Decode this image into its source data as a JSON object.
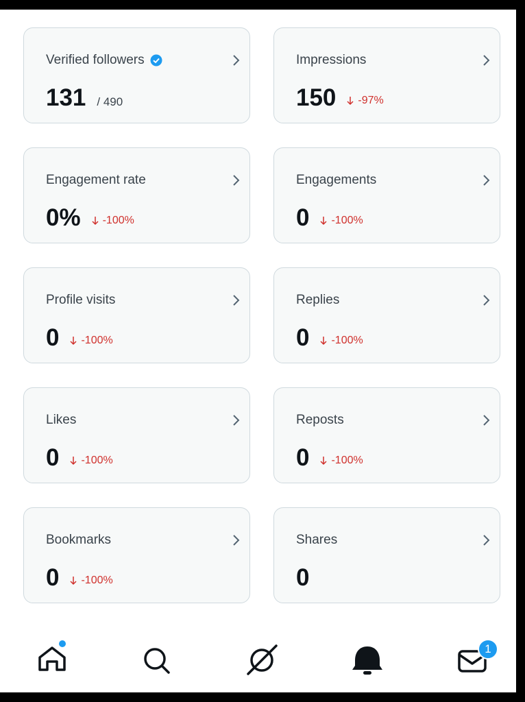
{
  "cards": [
    {
      "label": "Verified followers",
      "value": "131",
      "total": "/ 490",
      "verified": true
    },
    {
      "label": "Impressions",
      "value": "150",
      "change": "-97%"
    },
    {
      "label": "Engagement rate",
      "value": "0%",
      "change": "-100%"
    },
    {
      "label": "Engagements",
      "value": "0",
      "change": "-100%"
    },
    {
      "label": "Profile visits",
      "value": "0",
      "change": "-100%"
    },
    {
      "label": "Replies",
      "value": "0",
      "change": "-100%"
    },
    {
      "label": "Likes",
      "value": "0",
      "change": "-100%"
    },
    {
      "label": "Reposts",
      "value": "0",
      "change": "-100%"
    },
    {
      "label": "Bookmarks",
      "value": "0",
      "change": "-100%"
    },
    {
      "label": "Shares",
      "value": "0"
    }
  ],
  "nav": {
    "messages_badge": "1"
  }
}
